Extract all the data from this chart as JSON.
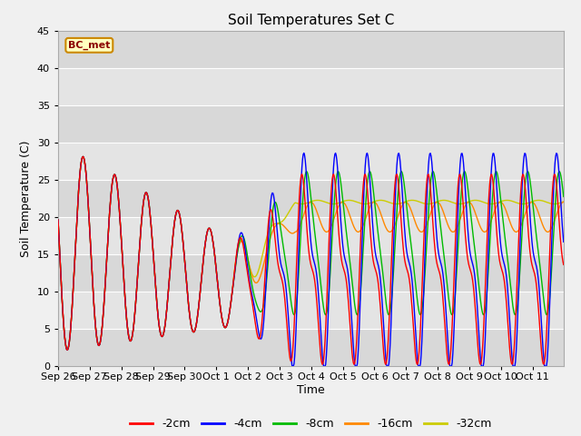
{
  "title": "Soil Temperatures Set C",
  "xlabel": "Time",
  "ylabel": "Soil Temperature (C)",
  "ylim": [
    0,
    45
  ],
  "bc_met_label": "BC_met",
  "legend_labels": [
    "-2cm",
    "-4cm",
    "-8cm",
    "-16cm",
    "-32cm"
  ],
  "line_colors": [
    "#ff0000",
    "#0000ff",
    "#00bb00",
    "#ff8800",
    "#cccc00"
  ],
  "bg_color": "#f0f0f0",
  "plot_bg_color": "#e8e8e8",
  "band_colors": [
    "#d8d8d8",
    "#e4e4e4"
  ],
  "xtick_labels": [
    "Sep 26",
    "Sep 27",
    "Sep 28",
    "Sep 29",
    "Sep 30",
    "Oct 1",
    "Oct 2",
    "Oct 3",
    "Oct 4",
    "Oct 5",
    "Oct 6",
    "Oct 7",
    "Oct 8",
    "Oct 9",
    "Oct 10",
    "Oct 11"
  ],
  "yticks": [
    0,
    5,
    10,
    15,
    20,
    25,
    30,
    35,
    40,
    45
  ],
  "n_days": 16,
  "pts_per_day": 48
}
